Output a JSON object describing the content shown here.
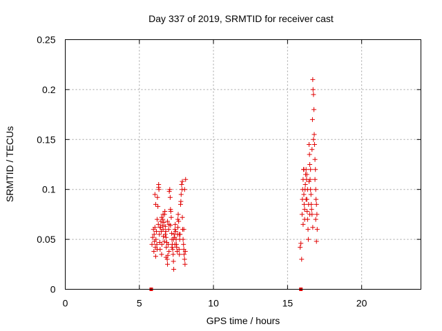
{
  "chart_data": {
    "type": "scatter",
    "title": "Day 337 of 2019, SRMTID for receiver cast",
    "xlabel": "GPS time / hours",
    "ylabel": "SRMTID / TECUs",
    "xlim": [
      0,
      24
    ],
    "ylim": [
      0,
      0.25
    ],
    "x_ticks": [
      0,
      5,
      10,
      15,
      20
    ],
    "x_tick_labels": [
      "0",
      "5",
      "10",
      "15",
      "20"
    ],
    "y_ticks": [
      0,
      0.05,
      0.1,
      0.15,
      0.2,
      0.25
    ],
    "y_tick_labels": [
      "0",
      "0.05",
      "0.1",
      "0.15",
      "0.2",
      "0.25"
    ],
    "grid": true,
    "legend": "none",
    "marker": "plus",
    "color": "#e00000",
    "zero_markers_x": [
      5.8,
      15.9
    ],
    "series": [
      {
        "points": [
          [
            5.85,
            0.045
          ],
          [
            5.9,
            0.052
          ],
          [
            5.95,
            0.06
          ],
          [
            5.98,
            0.038
          ],
          [
            6.0,
            0.055
          ],
          [
            6.02,
            0.048
          ],
          [
            6.05,
            0.062
          ],
          [
            6.08,
            0.042
          ],
          [
            6.1,
            0.033
          ],
          [
            6.12,
            0.05
          ],
          [
            6.15,
            0.058
          ],
          [
            6.18,
            0.045
          ],
          [
            6.2,
            0.07
          ],
          [
            6.22,
            0.092
          ],
          [
            6.25,
            0.083
          ],
          [
            6.28,
            0.065
          ],
          [
            6.3,
            0.105
          ],
          [
            6.32,
            0.1
          ],
          [
            6.35,
            0.055
          ],
          [
            6.38,
            0.047
          ],
          [
            6.4,
            0.04
          ],
          [
            6.42,
            0.062
          ],
          [
            6.45,
            0.068
          ],
          [
            6.48,
            0.058
          ],
          [
            6.5,
            0.072
          ],
          [
            6.52,
            0.045
          ],
          [
            6.55,
            0.064
          ],
          [
            6.58,
            0.07
          ],
          [
            6.6,
            0.06
          ],
          [
            6.62,
            0.053
          ],
          [
            6.65,
            0.067
          ],
          [
            6.68,
            0.048
          ],
          [
            6.7,
            0.075
          ],
          [
            6.72,
            0.078
          ],
          [
            6.75,
            0.063
          ],
          [
            6.78,
            0.058
          ],
          [
            6.8,
            0.052
          ],
          [
            6.82,
            0.042
          ],
          [
            6.85,
            0.047
          ],
          [
            6.88,
            0.03
          ],
          [
            6.9,
            0.025
          ],
          [
            6.92,
            0.034
          ],
          [
            6.95,
            0.045
          ],
          [
            6.98,
            0.06
          ],
          [
            7.0,
            0.065
          ],
          [
            7.02,
            0.098
          ],
          [
            7.05,
            0.1
          ],
          [
            7.08,
            0.092
          ],
          [
            7.1,
            0.08
          ],
          [
            7.12,
            0.078
          ],
          [
            7.15,
            0.072
          ],
          [
            7.18,
            0.056
          ],
          [
            7.2,
            0.05
          ],
          [
            7.22,
            0.045
          ],
          [
            7.25,
            0.04
          ],
          [
            7.28,
            0.035
          ],
          [
            7.3,
            0.028
          ],
          [
            7.32,
            0.02
          ],
          [
            7.35,
            0.055
          ],
          [
            7.38,
            0.052
          ],
          [
            7.4,
            0.06
          ],
          [
            7.42,
            0.065
          ],
          [
            7.45,
            0.058
          ],
          [
            7.48,
            0.05
          ],
          [
            7.5,
            0.045
          ],
          [
            7.52,
            0.042
          ],
          [
            7.55,
            0.038
          ],
          [
            7.58,
            0.055
          ],
          [
            7.6,
            0.07
          ],
          [
            7.62,
            0.075
          ],
          [
            7.65,
            0.068
          ],
          [
            7.68,
            0.04
          ],
          [
            7.7,
            0.035
          ],
          [
            7.72,
            0.05
          ],
          [
            7.75,
            0.055
          ],
          [
            7.78,
            0.085
          ],
          [
            7.8,
            0.088
          ],
          [
            7.82,
            0.095
          ],
          [
            7.85,
            0.105
          ],
          [
            7.88,
            0.1
          ],
          [
            7.9,
            0.108
          ],
          [
            7.92,
            0.06
          ],
          [
            7.95,
            0.05
          ],
          [
            7.98,
            0.045
          ],
          [
            8.0,
            0.04
          ],
          [
            8.02,
            0.035
          ],
          [
            8.05,
            0.03
          ],
          [
            8.08,
            0.025
          ],
          [
            8.1,
            0.038
          ],
          [
            8.12,
            0.11
          ],
          [
            6.3,
            0.102
          ],
          [
            6.05,
            0.095
          ],
          [
            6.1,
            0.085
          ],
          [
            6.6,
            0.075
          ],
          [
            6.4,
            0.062
          ],
          [
            7.3,
            0.05
          ],
          [
            7.6,
            0.062
          ],
          [
            7.9,
            0.072
          ],
          [
            8.05,
            0.1
          ],
          [
            6.75,
            0.055
          ],
          [
            6.9,
            0.068
          ],
          [
            7.1,
            0.064
          ],
          [
            7.4,
            0.045
          ],
          [
            7.7,
            0.055
          ],
          [
            8.0,
            0.06
          ],
          [
            6.2,
            0.04
          ],
          [
            6.5,
            0.035
          ],
          [
            6.8,
            0.032
          ],
          [
            7.0,
            0.038
          ],
          [
            7.2,
            0.042
          ]
        ]
      },
      {
        "points": [
          [
            15.85,
            0.042
          ],
          [
            15.9,
            0.046
          ],
          [
            15.95,
            0.03
          ],
          [
            15.98,
            0.075
          ],
          [
            16.0,
            0.09
          ],
          [
            16.02,
            0.1
          ],
          [
            16.05,
            0.11
          ],
          [
            16.08,
            0.12
          ],
          [
            16.1,
            0.095
          ],
          [
            16.12,
            0.085
          ],
          [
            16.15,
            0.08
          ],
          [
            16.18,
            0.1
          ],
          [
            16.2,
            0.105
          ],
          [
            16.22,
            0.115
          ],
          [
            16.25,
            0.12
          ],
          [
            16.28,
            0.11
          ],
          [
            16.3,
            0.09
          ],
          [
            16.32,
            0.078
          ],
          [
            16.35,
            0.07
          ],
          [
            16.38,
            0.06
          ],
          [
            16.4,
            0.05
          ],
          [
            16.42,
            0.085
          ],
          [
            16.45,
            0.145
          ],
          [
            16.48,
            0.135
          ],
          [
            16.5,
            0.125
          ],
          [
            16.52,
            0.11
          ],
          [
            16.55,
            0.1
          ],
          [
            16.58,
            0.095
          ],
          [
            16.6,
            0.085
          ],
          [
            16.62,
            0.08
          ],
          [
            16.65,
            0.075
          ],
          [
            16.68,
            0.17
          ],
          [
            16.7,
            0.21
          ],
          [
            16.72,
            0.2
          ],
          [
            16.75,
            0.195
          ],
          [
            16.78,
            0.18
          ],
          [
            16.8,
            0.155
          ],
          [
            16.82,
            0.145
          ],
          [
            16.85,
            0.13
          ],
          [
            16.88,
            0.12
          ],
          [
            16.9,
            0.1
          ],
          [
            16.92,
            0.09
          ],
          [
            16.95,
            0.085
          ],
          [
            16.98,
            0.075
          ],
          [
            17.0,
            0.06
          ],
          [
            16.05,
            0.065
          ],
          [
            16.15,
            0.07
          ],
          [
            16.25,
            0.09
          ],
          [
            16.35,
            0.1
          ],
          [
            16.45,
            0.108
          ],
          [
            16.55,
            0.12
          ],
          [
            16.65,
            0.14
          ],
          [
            16.75,
            0.15
          ],
          [
            16.85,
            0.11
          ],
          [
            16.95,
            0.048
          ],
          [
            16.1,
            0.12
          ],
          [
            16.3,
            0.115
          ],
          [
            16.5,
            0.075
          ],
          [
            16.7,
            0.062
          ],
          [
            16.9,
            0.07
          ]
        ]
      }
    ]
  }
}
